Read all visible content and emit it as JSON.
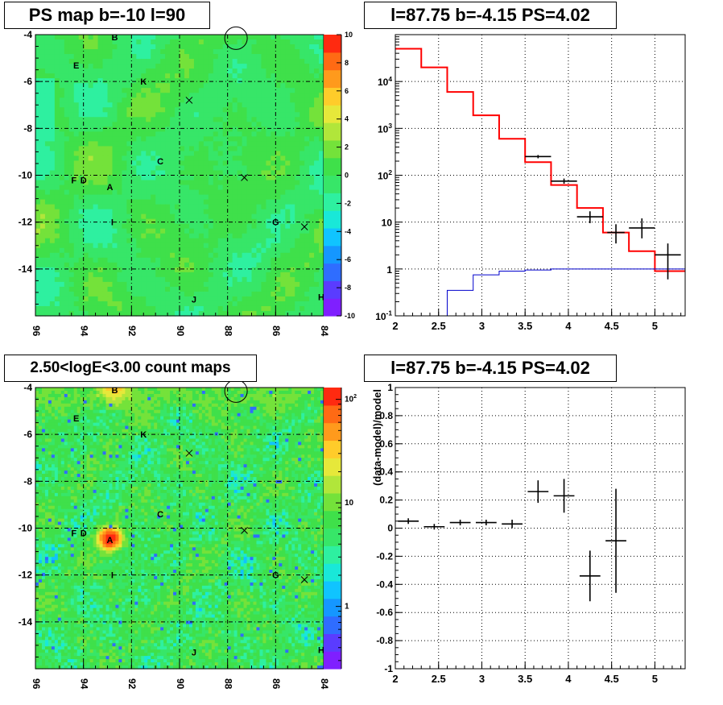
{
  "panels": {
    "ps_map_title": "PS map b=-10 l=90",
    "spectrum_title": "l=87.75 b=-4.15 PS=4.02",
    "count_map_title": "2.50<logE<3.00 count maps",
    "residual_title": "l=87.75 b=-4.15 PS=4.02"
  },
  "colors": {
    "palette": [
      "#7f1fff",
      "#5a3cff",
      "#2f6dff",
      "#1597ff",
      "#10c4ff",
      "#19e8d8",
      "#2ef0a0",
      "#37e668",
      "#3fe04a",
      "#74e23a",
      "#b1e63a",
      "#e6e83a",
      "#ffcc2a",
      "#ff9a1c",
      "#ff6a14",
      "#ff2a10"
    ],
    "model_line": "#ff0000",
    "component_line": "#0000cc",
    "data_marks": "#000000",
    "grid": "#000000"
  },
  "chart_data": [
    {
      "type": "heatmap",
      "title": "PS map b=-10 l=90",
      "xlabel": "",
      "ylabel": "",
      "xlim": [
        96,
        84
      ],
      "ylim": [
        -16,
        -4
      ],
      "x_ticks": [
        "96",
        "94",
        "92",
        "90",
        "88",
        "86",
        "84"
      ],
      "y_ticks": [
        "-4",
        "-6",
        "-8",
        "-10",
        "-12",
        "-14"
      ],
      "colorbar": {
        "range": [
          -10,
          10
        ],
        "ticks": [
          "10",
          "8",
          "6",
          "4",
          "2",
          "0",
          "-2",
          "-4",
          "-6",
          "-8",
          "-10"
        ]
      },
      "grid": true,
      "sources": [
        {
          "label": "B",
          "l": 92.7,
          "b": -4.1
        },
        {
          "label": "E",
          "l": 94.3,
          "b": -5.3
        },
        {
          "label": "K",
          "l": 91.5,
          "b": -6.0
        },
        {
          "label": "C",
          "l": 90.8,
          "b": -9.4
        },
        {
          "label": "F",
          "l": 94.4,
          "b": -10.2
        },
        {
          "label": "D",
          "l": 94.0,
          "b": -10.2
        },
        {
          "label": "A",
          "l": 92.9,
          "b": -10.5
        },
        {
          "label": "I",
          "l": 92.8,
          "b": -12.0
        },
        {
          "label": "G",
          "l": 86.0,
          "b": -12.0
        },
        {
          "label": "H",
          "l": 84.1,
          "b": -15.2
        },
        {
          "label": "J",
          "l": 89.4,
          "b": -15.3
        }
      ],
      "crosses": [
        {
          "l": 89.6,
          "b": -6.8
        },
        {
          "l": 87.3,
          "b": -10.1
        },
        {
          "l": 84.8,
          "b": -12.2
        }
      ],
      "circle": {
        "l": 87.75,
        "b": -4.15
      }
    },
    {
      "type": "line",
      "title": "l=87.75 b=-4.15 PS=4.02",
      "xlabel": "",
      "ylabel": "",
      "xlim": [
        2,
        5.35
      ],
      "ylim": [
        0.1,
        100000
      ],
      "yscale": "log",
      "x_ticks": [
        "2",
        "2.5",
        "3",
        "3.5",
        "4",
        "4.5",
        "5"
      ],
      "y_ticks": [
        "10^-1",
        "1",
        "10",
        "10^2",
        "10^3",
        "10^4"
      ],
      "grid": true,
      "series": [
        {
          "type": "step",
          "color": "#ff0000",
          "bins": [
            2.0,
            2.3,
            2.6,
            2.9,
            3.2,
            3.5,
            3.8,
            4.1,
            4.4,
            4.7,
            5.0,
            5.35
          ],
          "values": [
            50000,
            20000,
            6000,
            1900,
            600,
            190,
            62,
            20,
            6,
            2.4,
            0.9
          ]
        },
        {
          "type": "step",
          "color": "#0000cc",
          "bins": [
            2.0,
            2.3,
            2.6,
            2.9,
            3.2,
            3.5,
            3.8,
            4.1,
            4.4,
            4.7,
            5.0,
            5.35
          ],
          "values": [
            0.1,
            0.1,
            0.35,
            0.75,
            0.9,
            0.95,
            1.0,
            1.0,
            1.0,
            1.0,
            1.0
          ]
        },
        {
          "type": "errorbar",
          "color": "#000000",
          "points": [
            {
              "x": 3.65,
              "y": 250,
              "xerr": 0.15,
              "ylo": 230,
              "yhi": 270
            },
            {
              "x": 3.95,
              "y": 75,
              "xerr": 0.15,
              "ylo": 66,
              "yhi": 85
            },
            {
              "x": 4.25,
              "y": 13,
              "xerr": 0.15,
              "ylo": 9.5,
              "yhi": 17
            },
            {
              "x": 4.55,
              "y": 6.0,
              "xerr": 0.1,
              "ylo": 3.5,
              "yhi": 9.0
            },
            {
              "x": 4.85,
              "y": 7.5,
              "xerr": 0.15,
              "ylo": 4.5,
              "yhi": 12
            },
            {
              "x": 5.15,
              "y": 2.0,
              "xerr": 0.15,
              "ylo": 0.6,
              "yhi": 3.5
            }
          ]
        }
      ]
    },
    {
      "type": "heatmap",
      "title": "2.50<logE<3.00 count maps",
      "xlabel": "",
      "ylabel": "",
      "xlim": [
        96,
        84
      ],
      "ylim": [
        -16,
        -4
      ],
      "x_ticks": [
        "96",
        "94",
        "92",
        "90",
        "88",
        "86",
        "84"
      ],
      "y_ticks": [
        "-4",
        "-6",
        "-8",
        "-10",
        "-12",
        "-14"
      ],
      "colorbar": {
        "scale": "log",
        "range": [
          0.25,
          130
        ],
        "ticks": [
          "10^2",
          "10",
          "1"
        ]
      },
      "grid": true,
      "hotspot": {
        "l": 92.9,
        "b": -10.45,
        "peak": 120
      },
      "sources_same_as_ps_map": true
    },
    {
      "type": "scatter",
      "title": "l=87.75 b=-4.15 PS=4.02",
      "xlabel": "",
      "ylabel": "(data-model)/model",
      "xlim": [
        2,
        5.35
      ],
      "ylim": [
        -1,
        1
      ],
      "x_ticks": [
        "2",
        "2.5",
        "3",
        "3.5",
        "4",
        "4.5",
        "5"
      ],
      "y_ticks": [
        "1",
        "0.8",
        "0.6",
        "0.4",
        "0.2",
        "0",
        "-0.2",
        "-0.4",
        "-0.6",
        "-0.8",
        "-1"
      ],
      "grid": true,
      "points": [
        {
          "x": 2.15,
          "y": 0.05,
          "xerr": 0.12,
          "yerr": 0.02
        },
        {
          "x": 2.45,
          "y": 0.01,
          "xerr": 0.12,
          "yerr": 0.02
        },
        {
          "x": 2.75,
          "y": 0.04,
          "xerr": 0.12,
          "yerr": 0.02
        },
        {
          "x": 3.05,
          "y": 0.04,
          "xerr": 0.12,
          "yerr": 0.02
        },
        {
          "x": 3.35,
          "y": 0.03,
          "xerr": 0.12,
          "yerr": 0.03
        },
        {
          "x": 3.65,
          "y": 0.26,
          "xerr": 0.12,
          "yerr": 0.08
        },
        {
          "x": 3.95,
          "y": 0.23,
          "xerr": 0.12,
          "yerr": 0.12
        },
        {
          "x": 4.25,
          "y": -0.34,
          "xerr": 0.12,
          "yerr": 0.18
        },
        {
          "x": 4.55,
          "y": -0.09,
          "xerr": 0.12,
          "yerr": 0.37
        }
      ]
    }
  ]
}
